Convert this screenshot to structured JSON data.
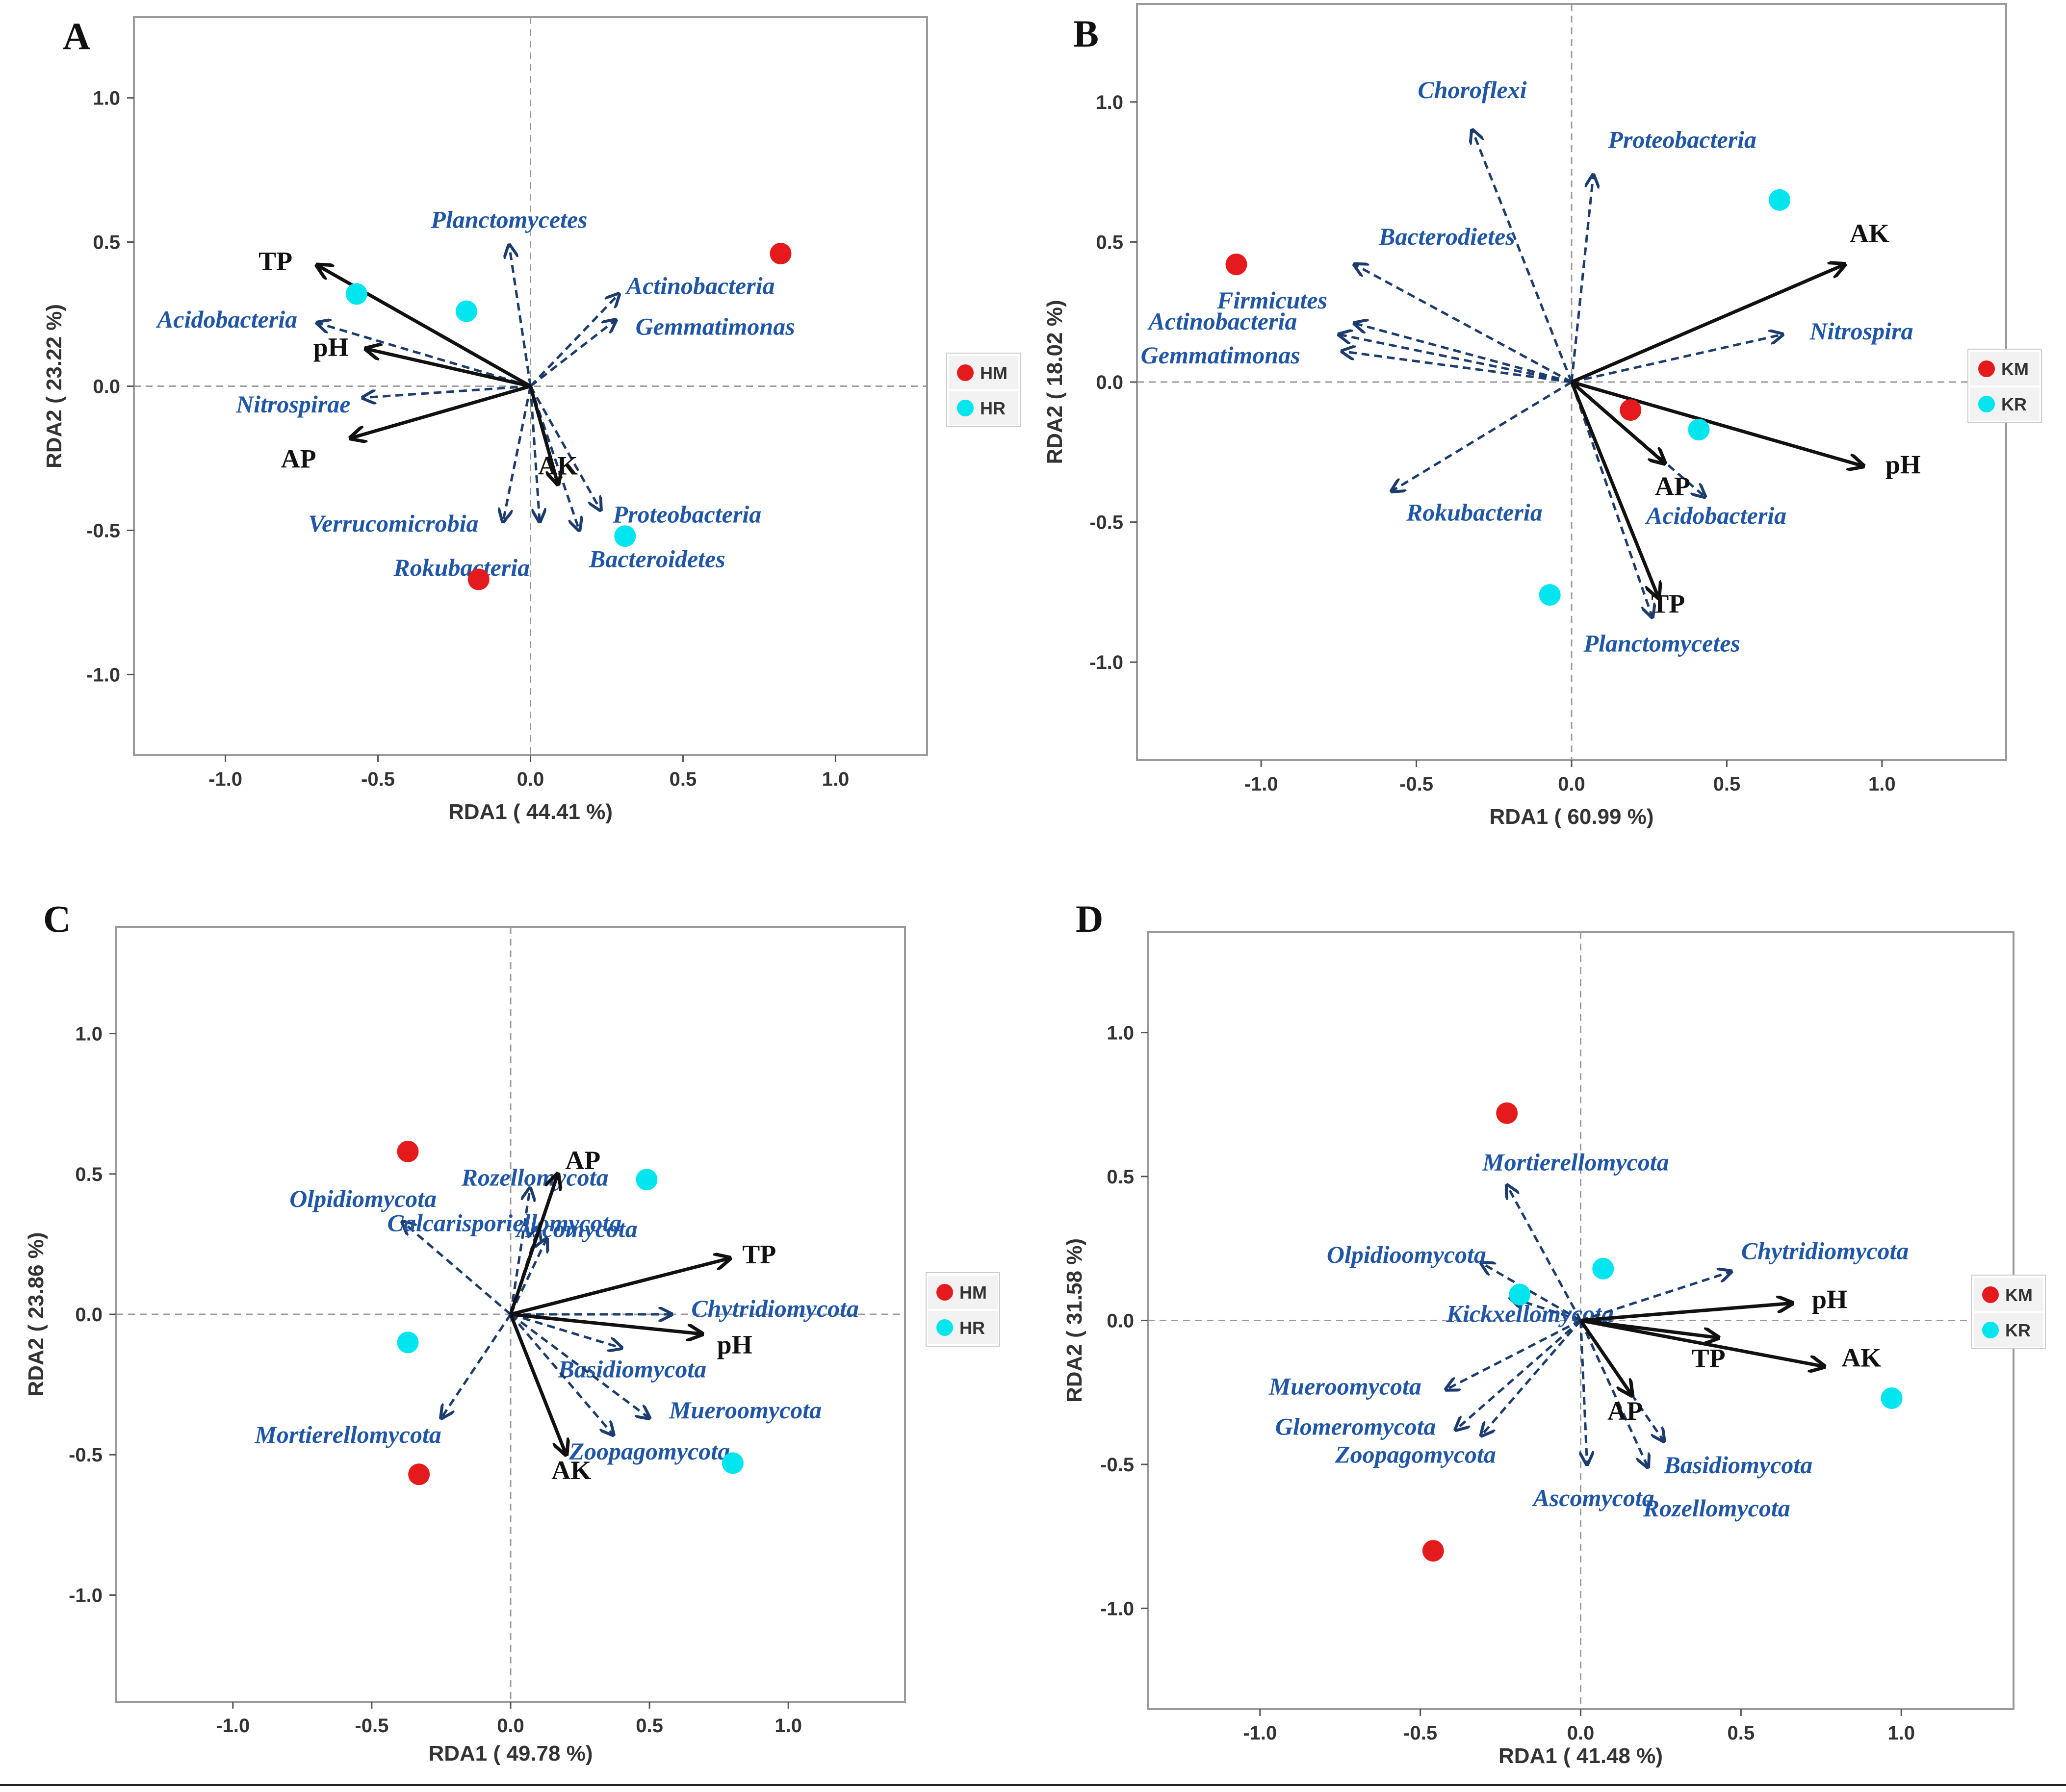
{
  "chart_data": [
    {
      "type": "scatter",
      "panel": "A",
      "xlabel": "RDA1 ( 44.41 %)",
      "ylabel": "RDA2 ( 23.22 %)",
      "xlim": [
        -1.3,
        1.3
      ],
      "ylim": [
        -1.28,
        1.28
      ],
      "xticks": [
        "-1.0",
        "-0.5",
        "0.0",
        "0.5",
        "1.0"
      ],
      "yticks": [
        "1.0",
        "0.5",
        "0.0",
        "-0.5",
        "-1.0"
      ],
      "xtick_values": [
        -1.0,
        -0.5,
        0.0,
        0.5,
        1.0
      ],
      "ytick_values": [
        1.0,
        0.5,
        0.0,
        -0.5,
        -1.0
      ],
      "legend": [
        {
          "label": "HM",
          "color": "#e41a1c"
        },
        {
          "label": "HR",
          "color": "#00e5ee"
        }
      ],
      "points": [
        {
          "group": "HM",
          "x": 0.82,
          "y": 0.46
        },
        {
          "group": "HM",
          "x": -0.17,
          "y": -0.67
        },
        {
          "group": "HR",
          "x": -0.57,
          "y": 0.32
        },
        {
          "group": "HR",
          "x": -0.21,
          "y": 0.26
        },
        {
          "group": "HR",
          "x": 0.31,
          "y": -0.52
        }
      ],
      "env_vectors": [
        {
          "label": "TP",
          "x": -0.7,
          "y": 0.42
        },
        {
          "label": "pH",
          "x": -0.54,
          "y": 0.13
        },
        {
          "label": "AP",
          "x": -0.59,
          "y": -0.18
        },
        {
          "label": "AK",
          "x": 0.09,
          "y": -0.34
        }
      ],
      "species_vectors": [
        {
          "label": "Planctomycetes",
          "x": -0.07,
          "y": 0.49
        },
        {
          "label": "Actinobacteria",
          "x": 0.29,
          "y": 0.32
        },
        {
          "label": "Gemmatimonas",
          "x": 0.28,
          "y": 0.23
        },
        {
          "label": "Acidobacteria",
          "x": -0.7,
          "y": 0.22
        },
        {
          "label": "Nitrospirae",
          "x": -0.55,
          "y": -0.04
        },
        {
          "label": "Verrucomicrobia",
          "x": -0.09,
          "y": -0.47
        },
        {
          "label": "Rokubacteria",
          "x": 0.03,
          "y": -0.47
        },
        {
          "label": "Proteobacteria",
          "x": 0.23,
          "y": -0.43
        },
        {
          "label": "Bacteroidetes",
          "x": 0.16,
          "y": -0.5
        }
      ]
    },
    {
      "type": "scatter",
      "panel": "B",
      "xlabel": "RDA1 ( 60.99 %)",
      "ylabel": "RDA2 ( 18.02 %)",
      "xlim": [
        -1.4,
        1.4
      ],
      "ylim": [
        -1.35,
        1.35
      ],
      "xticks": [
        "-1.0",
        "-0.5",
        "0.0",
        "0.5",
        "1.0"
      ],
      "yticks": [
        "1.0",
        "0.5",
        "0.0",
        "-0.5",
        "-1.0"
      ],
      "xtick_values": [
        -1.0,
        -0.5,
        0.0,
        0.5,
        1.0
      ],
      "ytick_values": [
        1.0,
        0.5,
        0.0,
        -0.5,
        -1.0
      ],
      "legend": [
        {
          "label": "KM",
          "color": "#e41a1c"
        },
        {
          "label": "KR",
          "color": "#00e5ee"
        }
      ],
      "points": [
        {
          "group": "KM",
          "x": -1.08,
          "y": 0.42
        },
        {
          "group": "KM",
          "x": 0.19,
          "y": -0.1
        },
        {
          "group": "KR",
          "x": 0.67,
          "y": 0.65
        },
        {
          "group": "KR",
          "x": 0.41,
          "y": -0.17
        },
        {
          "group": "KR",
          "x": -0.07,
          "y": -0.76
        }
      ],
      "env_vectors": [
        {
          "label": "AK",
          "x": 0.88,
          "y": 0.42
        },
        {
          "label": "pH",
          "x": 0.94,
          "y": -0.3
        },
        {
          "label": "AP",
          "x": 0.3,
          "y": -0.29
        },
        {
          "label": "TP",
          "x": 0.28,
          "y": -0.77
        }
      ],
      "species_vectors": [
        {
          "label": "Choroflexi",
          "x": -0.32,
          "y": 0.9
        },
        {
          "label": "Proteobacteria",
          "x": 0.07,
          "y": 0.74
        },
        {
          "label": "Bacterodietes",
          "x": -0.7,
          "y": 0.42
        },
        {
          "label": "Firmicutes",
          "x": -0.7,
          "y": 0.21
        },
        {
          "label": "Actinobacteria",
          "x": -0.75,
          "y": 0.17
        },
        {
          "label": "Gemmatimonas",
          "x": -0.74,
          "y": 0.11
        },
        {
          "label": "Nitrospira",
          "x": 0.68,
          "y": 0.17
        },
        {
          "label": "Rokubacteria",
          "x": -0.58,
          "y": -0.39
        },
        {
          "label": "Acidobacteria",
          "x": 0.43,
          "y": -0.41
        },
        {
          "label": "Planctomycetes",
          "x": 0.26,
          "y": -0.84
        }
      ]
    },
    {
      "type": "scatter",
      "panel": "C",
      "xlabel": "RDA1 ( 49.78 %)",
      "ylabel": "RDA2 ( 23.86 %)",
      "xlim": [
        -1.42,
        1.42
      ],
      "ylim": [
        -1.38,
        1.38
      ],
      "xticks": [
        "-1.0",
        "-0.5",
        "0.0",
        "0.5",
        "1.0"
      ],
      "yticks": [
        "1.0",
        "0.5",
        "0.0",
        "-0.5",
        "-1.0"
      ],
      "xtick_values": [
        -1.0,
        -0.5,
        0.0,
        0.5,
        1.0
      ],
      "ytick_values": [
        1.0,
        0.5,
        0.0,
        -0.5,
        -1.0
      ],
      "legend": [
        {
          "label": "HM",
          "color": "#e41a1c"
        },
        {
          "label": "HR",
          "color": "#00e5ee"
        }
      ],
      "points": [
        {
          "group": "HM",
          "x": -0.37,
          "y": 0.58
        },
        {
          "group": "HM",
          "x": -0.33,
          "y": -0.57
        },
        {
          "group": "HR",
          "x": 0.49,
          "y": 0.48
        },
        {
          "group": "HR",
          "x": -0.37,
          "y": -0.1
        },
        {
          "group": "HR",
          "x": 0.8,
          "y": -0.53
        }
      ],
      "env_vectors": [
        {
          "label": "AP",
          "x": 0.17,
          "y": 0.5
        },
        {
          "label": "TP",
          "x": 0.79,
          "y": 0.2
        },
        {
          "label": "pH",
          "x": 0.69,
          "y": -0.07
        },
        {
          "label": "AK",
          "x": 0.2,
          "y": -0.5
        }
      ],
      "species_vectors": [
        {
          "label": "Olpidiomycota",
          "x": -0.39,
          "y": 0.33
        },
        {
          "label": "Rozellomycota",
          "x": 0.07,
          "y": 0.45
        },
        {
          "label": "Ascomycota",
          "x": 0.1,
          "y": 0.31
        },
        {
          "label": "Calcarisporiellomycota",
          "x": 0.13,
          "y": 0.27
        },
        {
          "label": "Chytridiomycota",
          "x": 0.58,
          "y": 0.0
        },
        {
          "label": "Basidiomycota",
          "x": 0.4,
          "y": -0.12
        },
        {
          "label": "Mueroomycota",
          "x": 0.5,
          "y": -0.37
        },
        {
          "label": "Zoopagomycota",
          "x": 0.37,
          "y": -0.43
        },
        {
          "label": "Mortierellomycota",
          "x": -0.25,
          "y": -0.37
        }
      ]
    },
    {
      "type": "scatter",
      "panel": "D",
      "xlabel": "RDA1 ( 41.48 %)",
      "ylabel": "RDA2 ( 31.58 %)",
      "xlim": [
        -1.35,
        1.35
      ],
      "ylim": [
        -1.35,
        1.35
      ],
      "xticks": [
        "-1.0",
        "-0.5",
        "0.0",
        "0.5",
        "1.0"
      ],
      "yticks": [
        "1.0",
        "0.5",
        "0.0",
        "-0.5",
        "-1.0"
      ],
      "xtick_values": [
        -1.0,
        -0.5,
        0.0,
        0.5,
        1.0
      ],
      "ytick_values": [
        1.0,
        0.5,
        0.0,
        -0.5,
        -1.0
      ],
      "legend": [
        {
          "label": "KM",
          "color": "#e41a1c"
        },
        {
          "label": "KR",
          "color": "#00e5ee"
        }
      ],
      "points": [
        {
          "group": "KM",
          "x": -0.23,
          "y": 0.72
        },
        {
          "group": "KM",
          "x": -0.46,
          "y": -0.8
        },
        {
          "group": "KR",
          "x": 0.07,
          "y": 0.18
        },
        {
          "group": "KR",
          "x": -0.19,
          "y": 0.09
        },
        {
          "group": "KR",
          "x": 0.97,
          "y": -0.27
        }
      ],
      "env_vectors": [
        {
          "label": "pH",
          "x": 0.66,
          "y": 0.06
        },
        {
          "label": "TP",
          "x": 0.43,
          "y": -0.06
        },
        {
          "label": "AK",
          "x": 0.76,
          "y": -0.16
        },
        {
          "label": "AP",
          "x": 0.16,
          "y": -0.26
        }
      ],
      "species_vectors": [
        {
          "label": "Mortierellomycota",
          "x": -0.23,
          "y": 0.47
        },
        {
          "label": "Olpidioomycota",
          "x": -0.31,
          "y": 0.2
        },
        {
          "label": "Kickxellomycota",
          "x": -0.22,
          "y": 0.08
        },
        {
          "label": "Chytridiomycota",
          "x": 0.47,
          "y": 0.17
        },
        {
          "label": "Mueroomycota",
          "x": -0.42,
          "y": -0.24
        },
        {
          "label": "Glomeromycota",
          "x": -0.39,
          "y": -0.38
        },
        {
          "label": "Zoopagomycota",
          "x": -0.31,
          "y": -0.4
        },
        {
          "label": "Ascomycota",
          "x": 0.02,
          "y": -0.5
        },
        {
          "label": "Basidiomycota",
          "x": 0.26,
          "y": -0.42
        },
        {
          "label": "Rozellomycota",
          "x": 0.21,
          "y": -0.51
        }
      ]
    }
  ]
}
